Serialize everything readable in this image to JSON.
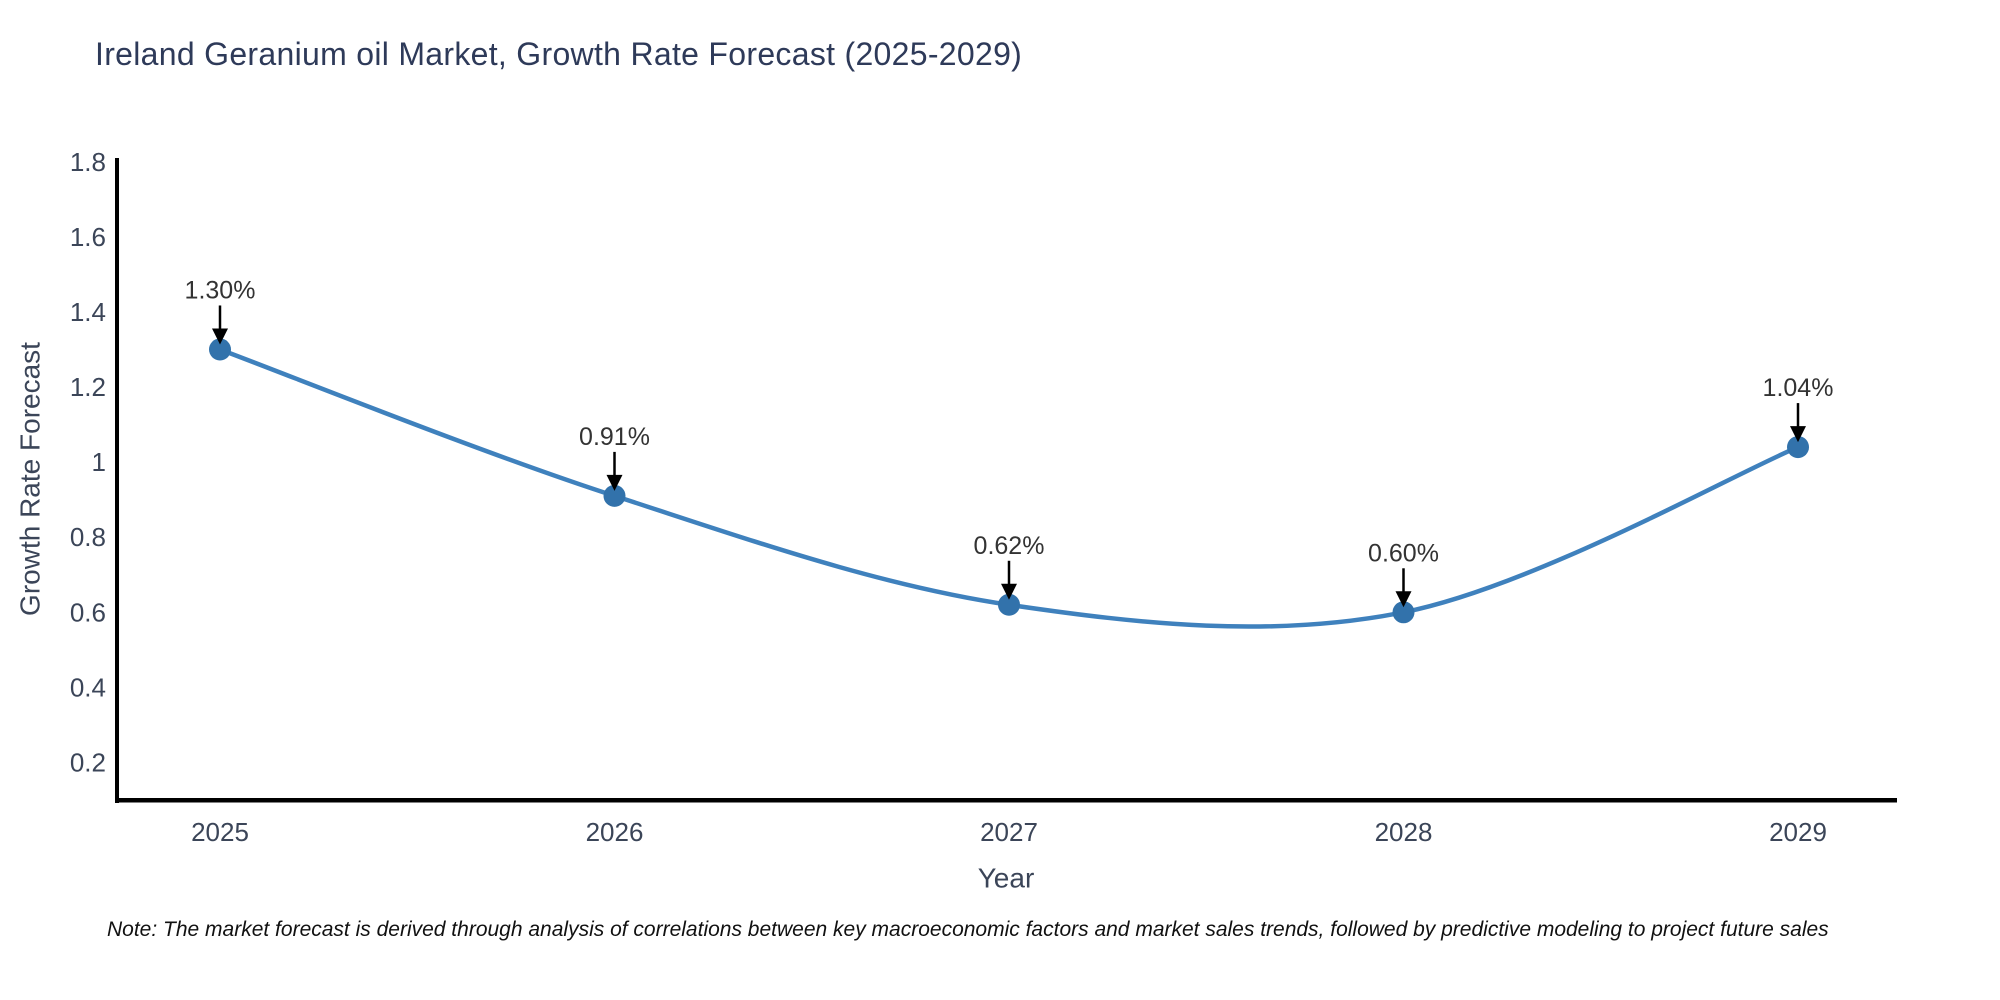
{
  "title": "Ireland Geranium oil Market, Growth Rate Forecast (2025-2029)",
  "note": "Note: The market forecast is derived through analysis of correlations between key macroeconomic factors and market sales trends, followed by predictive modeling to project future sales",
  "chart_data": {
    "type": "line",
    "title": "Ireland Geranium oil Market, Growth Rate Forecast (2025-2029)",
    "x": [
      2025,
      2026,
      2027,
      2028,
      2029
    ],
    "series": [
      {
        "name": "Growth Rate Forecast",
        "values": [
          1.3,
          0.91,
          0.62,
          0.6,
          1.04
        ]
      }
    ],
    "point_labels": [
      "1.30%",
      "0.91%",
      "0.62%",
      "0.60%",
      "1.04%"
    ],
    "xlabel": "Year",
    "ylabel": "Growth Rate Forecast",
    "xticks": [
      "2025",
      "2026",
      "2027",
      "2028",
      "2029"
    ],
    "yticks": [
      "0.2",
      "0.4",
      "0.6",
      "0.8",
      "1",
      "1.2",
      "1.4",
      "1.6",
      "1.8"
    ],
    "ylim": [
      0.1,
      1.81
    ],
    "line_shape": "spline",
    "grid": false,
    "legend_position": "none",
    "colors": {
      "line": "#3f81bd",
      "marker": "#3272ab",
      "axis": "#000000",
      "tick_label": "#3b4558",
      "axis_title": "#3b4558",
      "annotation_text": "#333333",
      "annotation_arrow": "#000000"
    }
  }
}
